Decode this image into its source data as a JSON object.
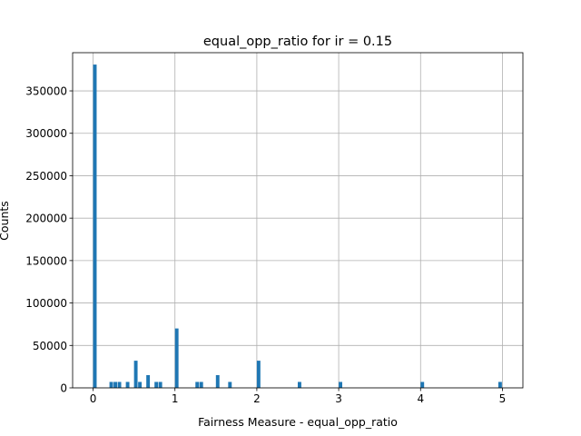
{
  "chart_data": {
    "type": "bar",
    "title": "equal_opp_ratio for ir = 0.15",
    "xlabel": "Fairness Measure - equal_opp_ratio",
    "ylabel": "Counts",
    "xlim": [
      -0.25,
      5.25
    ],
    "ylim": [
      0,
      395000
    ],
    "xticks": [
      0,
      1,
      2,
      3,
      4,
      5
    ],
    "xtick_labels": [
      "0",
      "1",
      "2",
      "3",
      "4",
      "5"
    ],
    "yticks": [
      0,
      50000,
      100000,
      150000,
      200000,
      250000,
      300000,
      350000
    ],
    "ytick_labels": [
      "0",
      "50000",
      "100000",
      "150000",
      "200000",
      "250000",
      "300000",
      "350000"
    ],
    "grid": true,
    "color": "#1f77b4",
    "bin_width": 0.05,
    "bins": [
      {
        "x": 0.0,
        "count": 381000
      },
      {
        "x": 0.2,
        "count": 7000
      },
      {
        "x": 0.25,
        "count": 7000
      },
      {
        "x": 0.3,
        "count": 7000
      },
      {
        "x": 0.4,
        "count": 7000
      },
      {
        "x": 0.5,
        "count": 32000
      },
      {
        "x": 0.55,
        "count": 7000
      },
      {
        "x": 0.65,
        "count": 15000
      },
      {
        "x": 0.75,
        "count": 7000
      },
      {
        "x": 0.8,
        "count": 7000
      },
      {
        "x": 1.0,
        "count": 70000
      },
      {
        "x": 1.25,
        "count": 7000
      },
      {
        "x": 1.3,
        "count": 7000
      },
      {
        "x": 1.5,
        "count": 15000
      },
      {
        "x": 1.65,
        "count": 7000
      },
      {
        "x": 2.0,
        "count": 32000
      },
      {
        "x": 2.5,
        "count": 7000
      },
      {
        "x": 3.0,
        "count": 7000
      },
      {
        "x": 4.0,
        "count": 7000
      },
      {
        "x": 4.95,
        "count": 7000
      }
    ]
  }
}
